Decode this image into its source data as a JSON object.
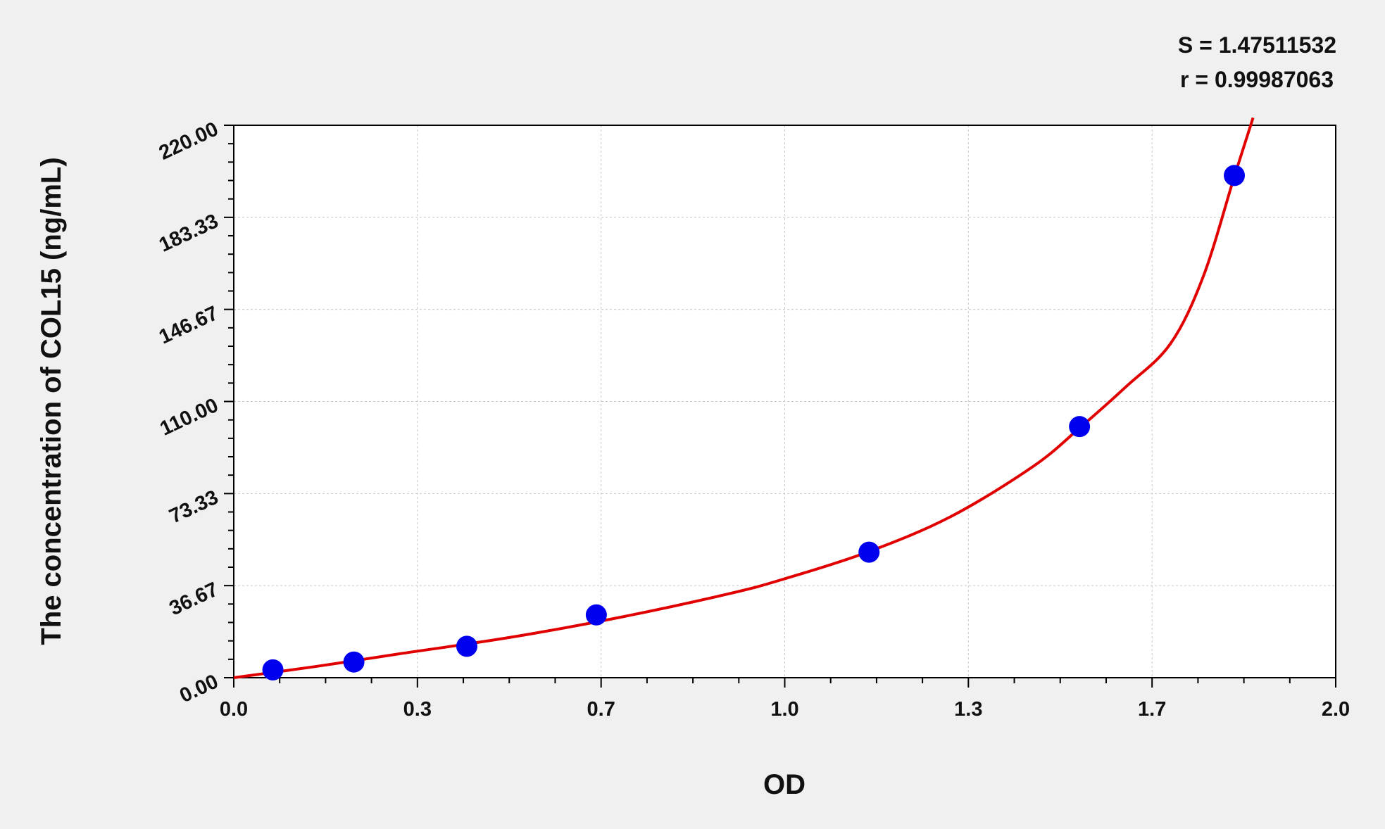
{
  "chart_data": {
    "type": "scatter",
    "title": "",
    "xlabel": "OD",
    "ylabel": "The concentration of COL15 (ng/mL)",
    "xlim": [
      0,
      2.0
    ],
    "ylim": [
      0,
      220
    ],
    "x_ticks": [
      0,
      0.3333,
      0.6667,
      1.0,
      1.3333,
      1.6667,
      2.0
    ],
    "x_tick_labels": [
      "0.0",
      "0.3",
      "0.7",
      "1.0",
      "1.3",
      "1.7",
      "2.0"
    ],
    "y_ticks": [
      0,
      36.67,
      73.33,
      110,
      146.67,
      183.33,
      220
    ],
    "y_tick_labels": [
      "0.00",
      "36.67",
      "73.33",
      "110.00",
      "146.67",
      "183.33",
      "220.00"
    ],
    "grid": true,
    "annotations": [
      "S = 1.47511532",
      "r = 0.99987063"
    ],
    "series": [
      {
        "kind": "points",
        "color": "#0000ee",
        "x": [
          0.071,
          0.218,
          0.423,
          0.658,
          1.153,
          1.535,
          1.816
        ],
        "y": [
          3.125,
          6.25,
          12.5,
          25,
          50,
          100,
          200
        ]
      },
      {
        "kind": "fitted-curve",
        "color": "#e00000",
        "x": [
          0,
          0.15,
          0.3,
          0.5,
          0.7,
          0.9,
          1.0,
          1.15,
          1.3,
          1.45,
          1.535,
          1.62,
          1.7,
          1.76,
          1.816,
          1.85
        ],
        "y": [
          0,
          4.5,
          9.5,
          16,
          24,
          33.5,
          39.4,
          50,
          64,
          84,
          99.4,
          116,
          133,
          160,
          199.6,
          223
        ]
      }
    ]
  }
}
